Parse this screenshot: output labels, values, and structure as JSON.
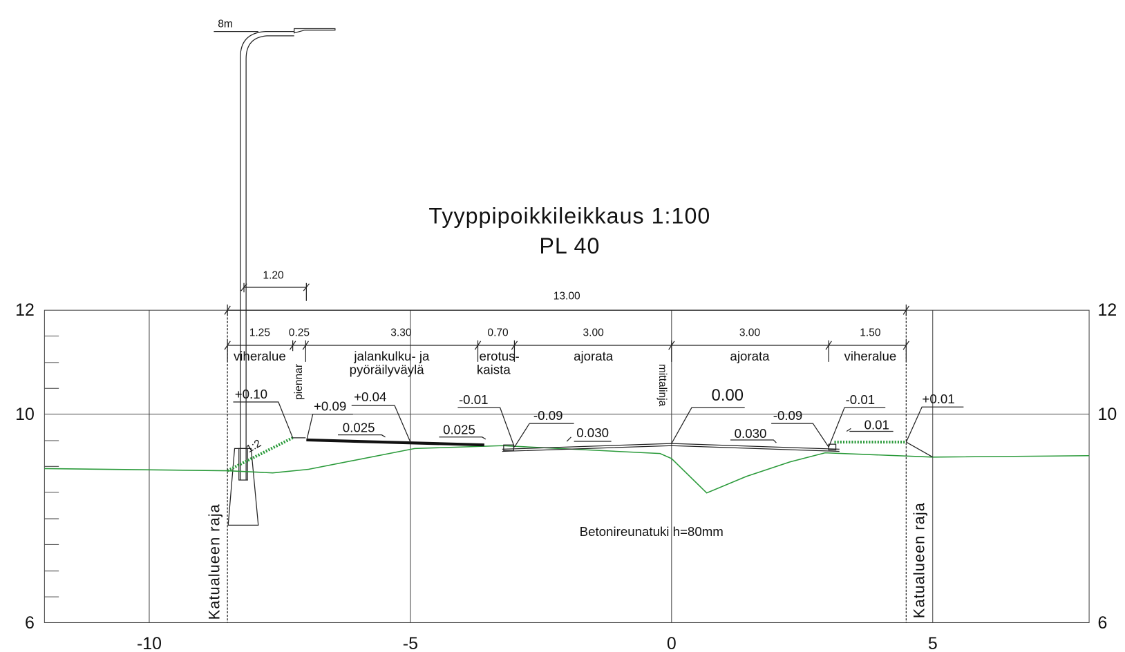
{
  "title": "Tyyppipoikkileikkaus 1:100",
  "subtitle": "PL 40",
  "lamp": "8m",
  "dimensions": {
    "lamp_offset": "1.20",
    "total": "13.00",
    "widths": [
      "1.25",
      "0.25",
      "3.30",
      "0.70",
      "3.00",
      "3.00",
      "1.50"
    ]
  },
  "zones": [
    "viheralue",
    "piennar",
    "jalankulku- ja",
    "pyöräilyväylä",
    "erotus-",
    "kaista",
    "ajorata",
    "mittalinja",
    "ajorata",
    "viheralue"
  ],
  "elevations": [
    "+0.10",
    "+0.09",
    "+0.04",
    "-0.01",
    "-0.09",
    "0.00",
    "-0.09",
    "-0.01",
    "+0.01"
  ],
  "slopes": [
    "1:2",
    "0.025",
    "0.025",
    "0.030",
    "0.030",
    "0.01"
  ],
  "note": "Betonireunatuki h=80mm",
  "boundary": [
    "Katualueen raja",
    "Katualueen raja"
  ],
  "axes": {
    "x": [
      -10,
      -5,
      0,
      5
    ],
    "y_left": [
      12,
      10,
      6
    ],
    "y_right": [
      12,
      10,
      6
    ]
  }
}
